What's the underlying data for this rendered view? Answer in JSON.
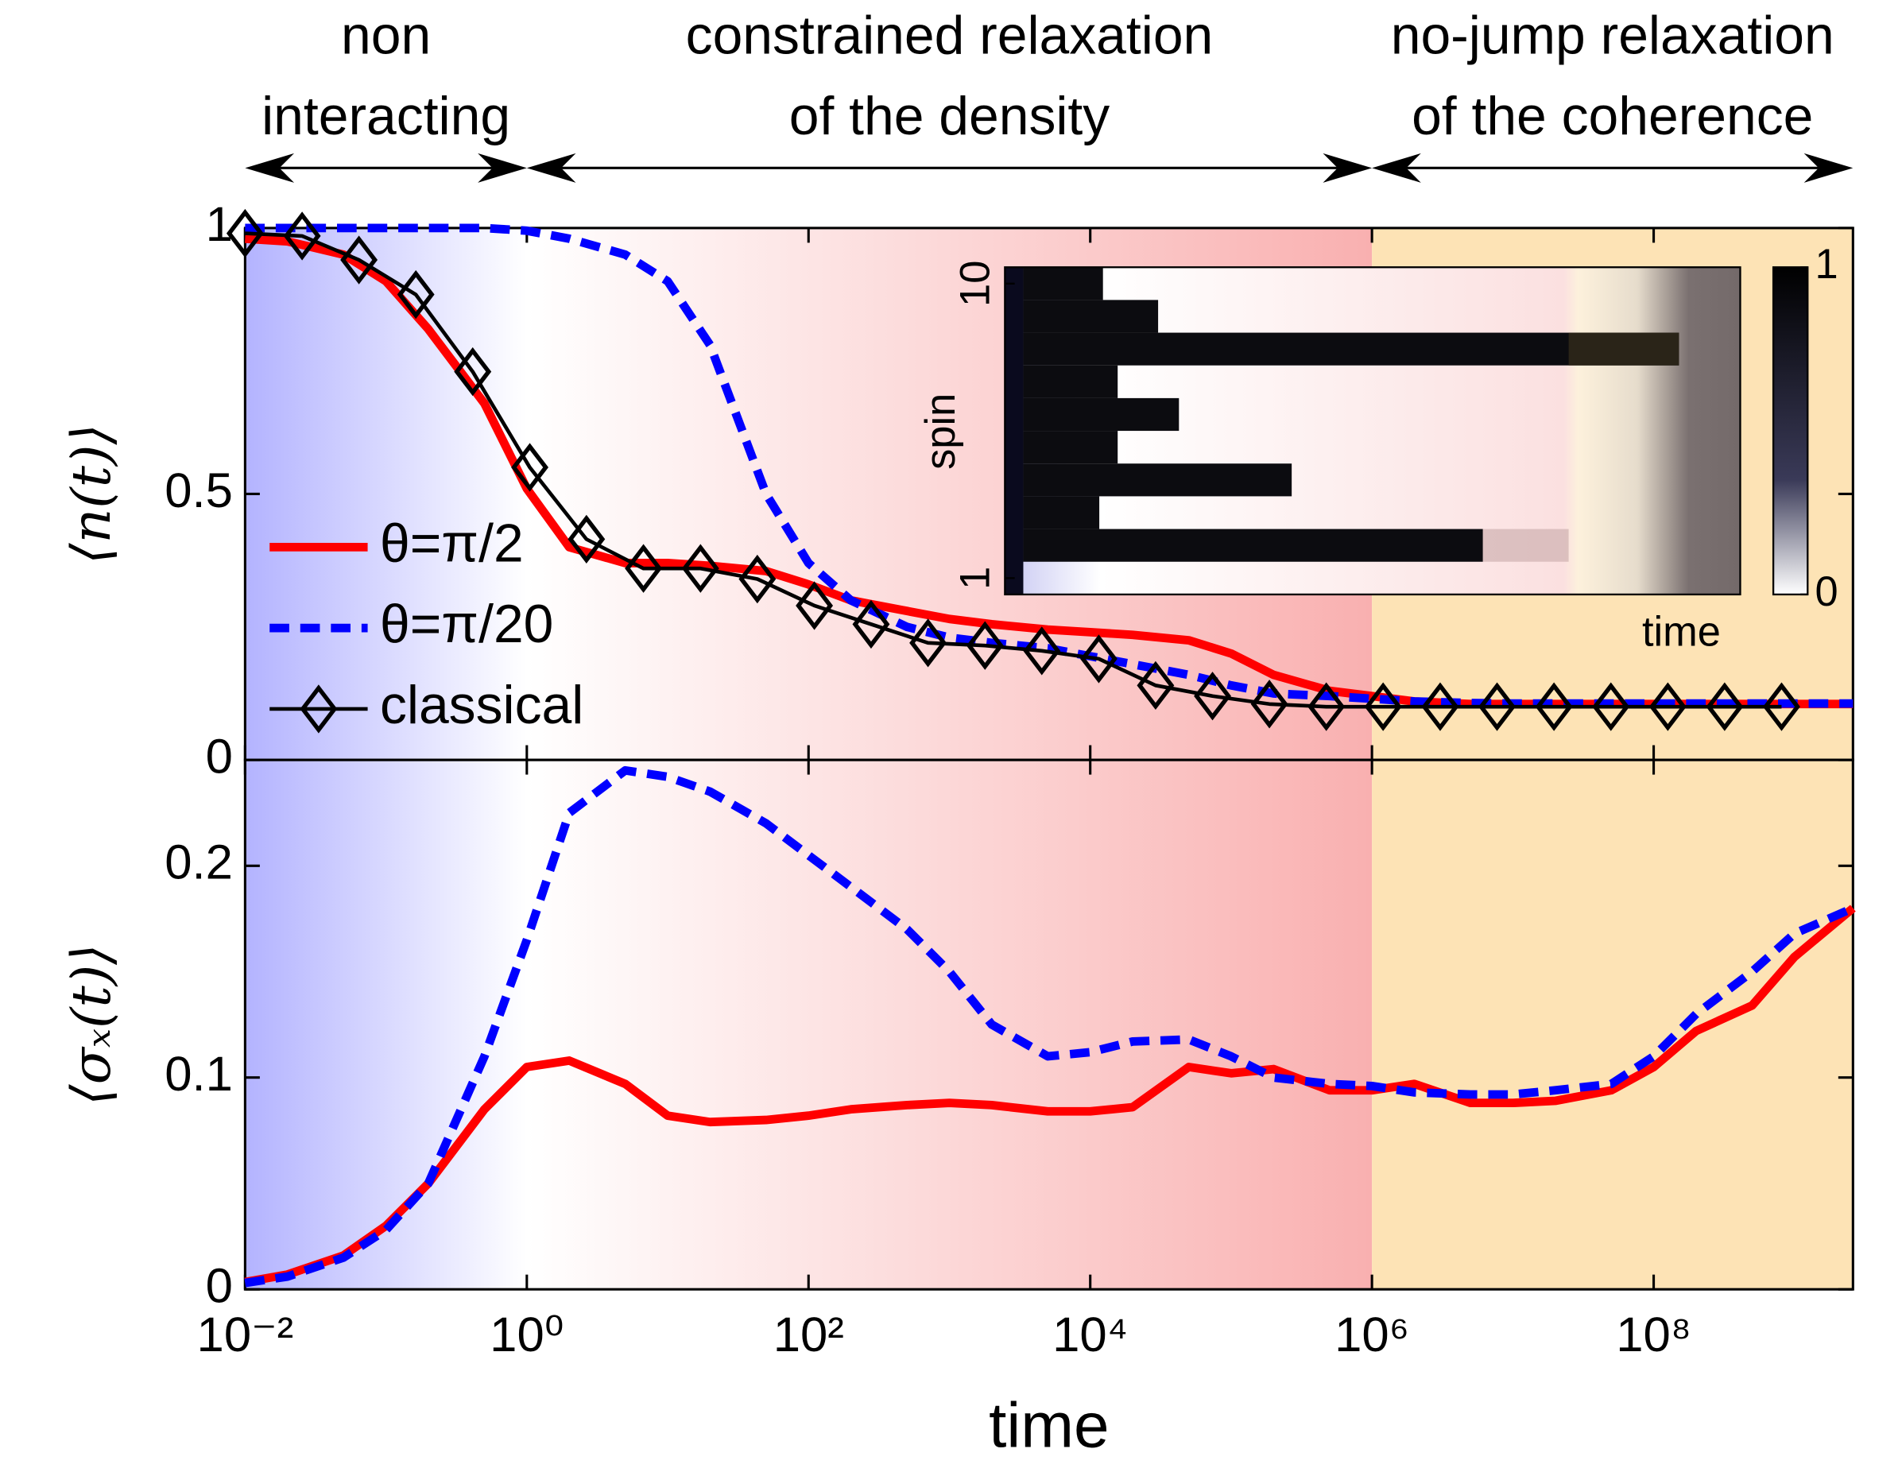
{
  "chart_data": [
    {
      "type": "line",
      "ylabel": "⟨n(t)⟩",
      "xlog": true,
      "xlim": [
        0.01,
        2600000000
      ],
      "ylim": [
        0,
        1
      ],
      "yticks": [
        0,
        0.5,
        1
      ],
      "legend": "center left",
      "regions": [
        {
          "lines": [
            "non",
            "interacting"
          ],
          "from": 0.01,
          "to": 1,
          "color": "#b3b3ff"
        },
        {
          "lines": [
            "constrained relaxation",
            "of the density"
          ],
          "from": 1,
          "to": 1000000,
          "color": "#f9b0b0"
        },
        {
          "lines": [
            "no-jump relaxation",
            "of the coherence"
          ],
          "from": 1000000,
          "to": 2600000000,
          "color": "#fde3b5"
        }
      ],
      "x": [
        0.01,
        0.02,
        0.05,
        0.1,
        0.2,
        0.5,
        1,
        2,
        5,
        10,
        20,
        50,
        100,
        200,
        500,
        1000,
        2000,
        5000,
        10000,
        20000,
        50000,
        100000,
        200000,
        500000,
        1000000,
        2000000,
        5000000,
        10000000,
        20000000,
        50000000,
        100000000,
        200000000,
        500000000,
        1000000000,
        2600000000
      ],
      "series": [
        {
          "name": "θ=π/2",
          "color": "#ff0000",
          "values": [
            0.98,
            0.975,
            0.95,
            0.9,
            0.81,
            0.67,
            0.51,
            0.4,
            0.37,
            0.37,
            0.365,
            0.355,
            0.33,
            0.3,
            0.28,
            0.265,
            0.255,
            0.245,
            0.24,
            0.235,
            0.225,
            0.2,
            0.16,
            0.13,
            0.12,
            0.11,
            0.105,
            0.105,
            0.105,
            0.105,
            0.105,
            0.105,
            0.105,
            0.105,
            0.105
          ]
        },
        {
          "name": "θ=π/20",
          "color": "#0000ff",
          "dash": true,
          "values": [
            1,
            1,
            1,
            1,
            1,
            1,
            0.995,
            0.98,
            0.95,
            0.9,
            0.78,
            0.5,
            0.37,
            0.3,
            0.25,
            0.23,
            0.22,
            0.21,
            0.195,
            0.18,
            0.16,
            0.14,
            0.125,
            0.12,
            0.115,
            0.11,
            0.107,
            0.106,
            0.106,
            0.106,
            0.106,
            0.106,
            0.106,
            0.106,
            0.106
          ]
        },
        {
          "name": "classical",
          "color": "#000000",
          "marker": "diamond",
          "x": [
            0.01,
            0.0254,
            0.0643,
            0.163,
            0.413,
            1.05,
            2.65,
            6.73,
            17.1,
            43.3,
            110,
            278,
            705,
            1790,
            4530,
            11500,
            29100,
            73800,
            187000,
            474000,
            1200000,
            3050000,
            7730000,
            19600000,
            49700000,
            126000000,
            319000000,
            809000000
          ],
          "values": [
            0.99,
            0.985,
            0.94,
            0.875,
            0.73,
            0.55,
            0.415,
            0.36,
            0.36,
            0.34,
            0.29,
            0.255,
            0.22,
            0.215,
            0.205,
            0.19,
            0.14,
            0.12,
            0.105,
            0.1,
            0.1,
            0.1,
            0.1,
            0.1,
            0.1,
            0.1,
            0.1,
            0.1
          ]
        }
      ],
      "inset": {
        "ylabel": "spin",
        "xlabel": "time",
        "ylim": [
          0.5,
          10.5
        ],
        "yticks": [
          1,
          10
        ],
        "colorbar_lim": [
          0,
          1
        ],
        "colorbar_ticks": [
          0,
          1
        ]
      }
    },
    {
      "type": "line",
      "xlabel": "time",
      "ylabel": "⟨σₓ(t)⟩",
      "xlog": true,
      "xlim": [
        0.01,
        2600000000
      ],
      "xticks": [
        {
          "value": 0.01,
          "label": "10⁻²"
        },
        {
          "value": 1,
          "label": "10⁰"
        },
        {
          "value": 100,
          "label": "10²"
        },
        {
          "value": 10000,
          "label": "10⁴"
        },
        {
          "value": 1000000,
          "label": "10⁶"
        },
        {
          "value": 100000000,
          "label": "10⁸"
        }
      ],
      "ylim": [
        0,
        0.25
      ],
      "yticks": [
        0,
        0.1,
        0.2
      ],
      "x": [
        0.01,
        0.02,
        0.05,
        0.1,
        0.2,
        0.5,
        1,
        2,
        5,
        10,
        20,
        50,
        100,
        200,
        500,
        1000,
        2000,
        5000,
        10000,
        20000,
        50000,
        100000,
        200000,
        500000,
        1000000,
        2000000,
        5000000,
        10000000,
        20000000,
        50000000,
        100000000,
        200000000,
        500000000,
        1000000000,
        2600000000
      ],
      "series": [
        {
          "color": "#ff0000",
          "values": [
            0.0035,
            0.007,
            0.016,
            0.03,
            0.05,
            0.085,
            0.105,
            0.108,
            0.097,
            0.082,
            0.079,
            0.08,
            0.082,
            0.085,
            0.087,
            0.088,
            0.087,
            0.084,
            0.084,
            0.086,
            0.105,
            0.102,
            0.104,
            0.094,
            0.094,
            0.097,
            0.088,
            0.088,
            0.089,
            0.094,
            0.105,
            0.122,
            0.134,
            0.157,
            0.18
          ]
        },
        {
          "color": "#0000ff",
          "dash": true,
          "values": [
            0.003,
            0.006,
            0.015,
            0.028,
            0.05,
            0.11,
            0.165,
            0.225,
            0.245,
            0.242,
            0.235,
            0.22,
            0.205,
            0.19,
            0.17,
            0.15,
            0.125,
            0.11,
            0.112,
            0.117,
            0.118,
            0.11,
            0.1,
            0.097,
            0.096,
            0.093,
            0.092,
            0.092,
            0.094,
            0.097,
            0.11,
            0.13,
            0.15,
            0.168,
            0.18
          ]
        }
      ]
    }
  ]
}
